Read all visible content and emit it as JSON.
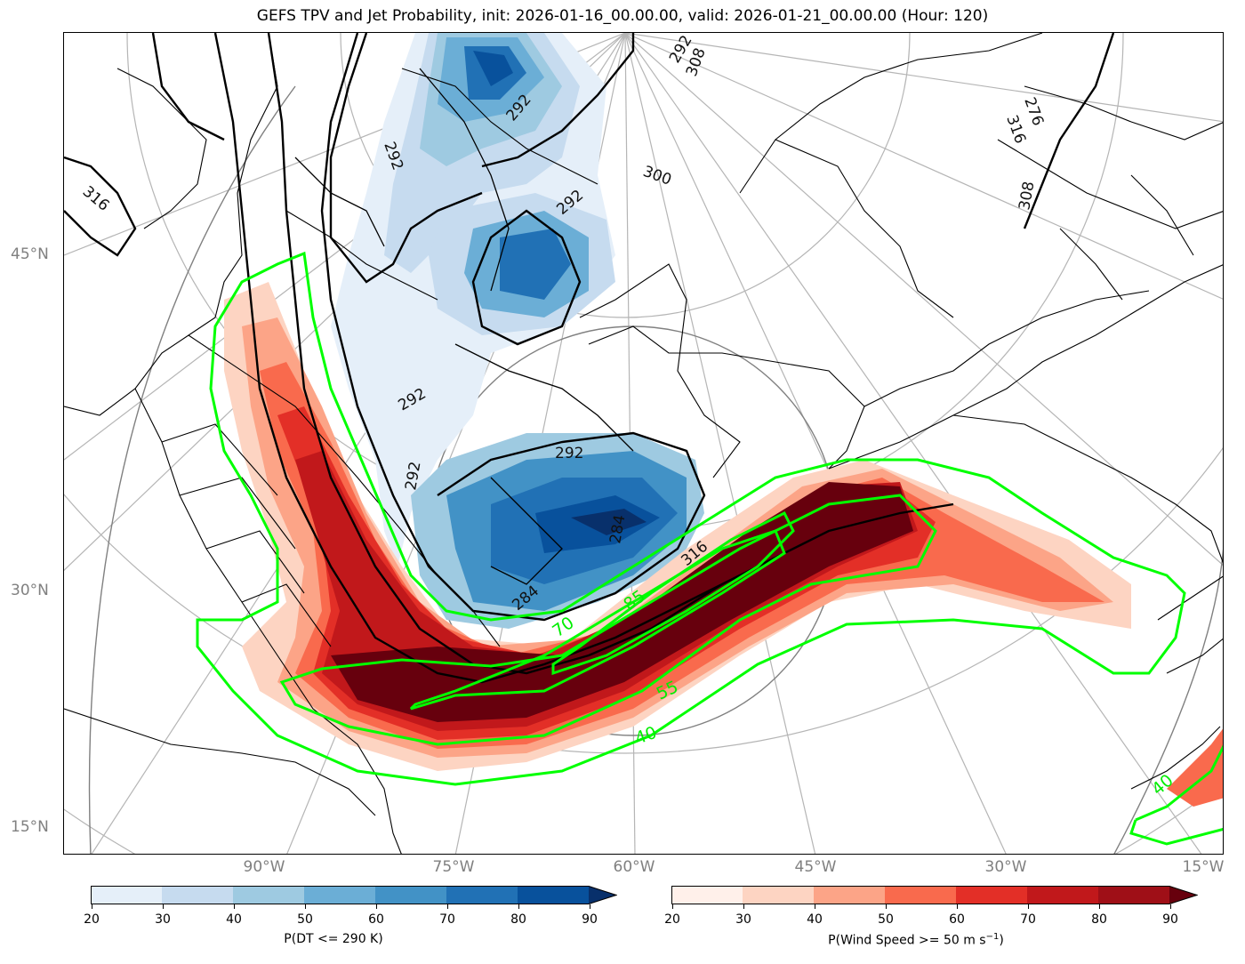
{
  "title": "GEFS TPV and Jet Probability, init: 2026-01-16_00.00.00, valid: 2026-01-21_00.00.00 (Hour: 120)",
  "lat_labels": [
    "45°N",
    "30°N",
    "15°N"
  ],
  "lon_labels": [
    "90°W",
    "75°W",
    "60°W",
    "45°W",
    "30°W",
    "15°W"
  ],
  "dt_contour_labels": [
    "292",
    "292",
    "292",
    "300",
    "292",
    "292",
    "292",
    "292",
    "284",
    "284",
    "276",
    "308",
    "308",
    "316",
    "316",
    "316"
  ],
  "wind_contour_labels": [
    "85",
    "70",
    "55",
    "40",
    "40"
  ],
  "colorbar_left": {
    "label": "P(DT <= 290 K)",
    "ticks": [
      "20",
      "30",
      "40",
      "50",
      "60",
      "70",
      "80",
      "90"
    ],
    "colors": [
      "#e5eff9",
      "#c6dbef",
      "#9ecae1",
      "#6baed6",
      "#4292c6",
      "#2171b5",
      "#08519c",
      "#08306b"
    ]
  },
  "colorbar_right": {
    "label_main": "P(Wind Speed >= 50 m s",
    "label_sup": "−1",
    "label_end": ")",
    "ticks": [
      "20",
      "30",
      "40",
      "50",
      "60",
      "70",
      "80",
      "90"
    ],
    "colors": [
      "#fff0ea",
      "#fdd4c2",
      "#fca487",
      "#f96a4d",
      "#e32f27",
      "#c1181b",
      "#9f0f17",
      "#67000d"
    ]
  },
  "colors": {
    "jet_contour": "#00ff00",
    "dt_contour": "#000000",
    "graticule": "#b0b0b0",
    "axis_label": "#808080"
  }
}
